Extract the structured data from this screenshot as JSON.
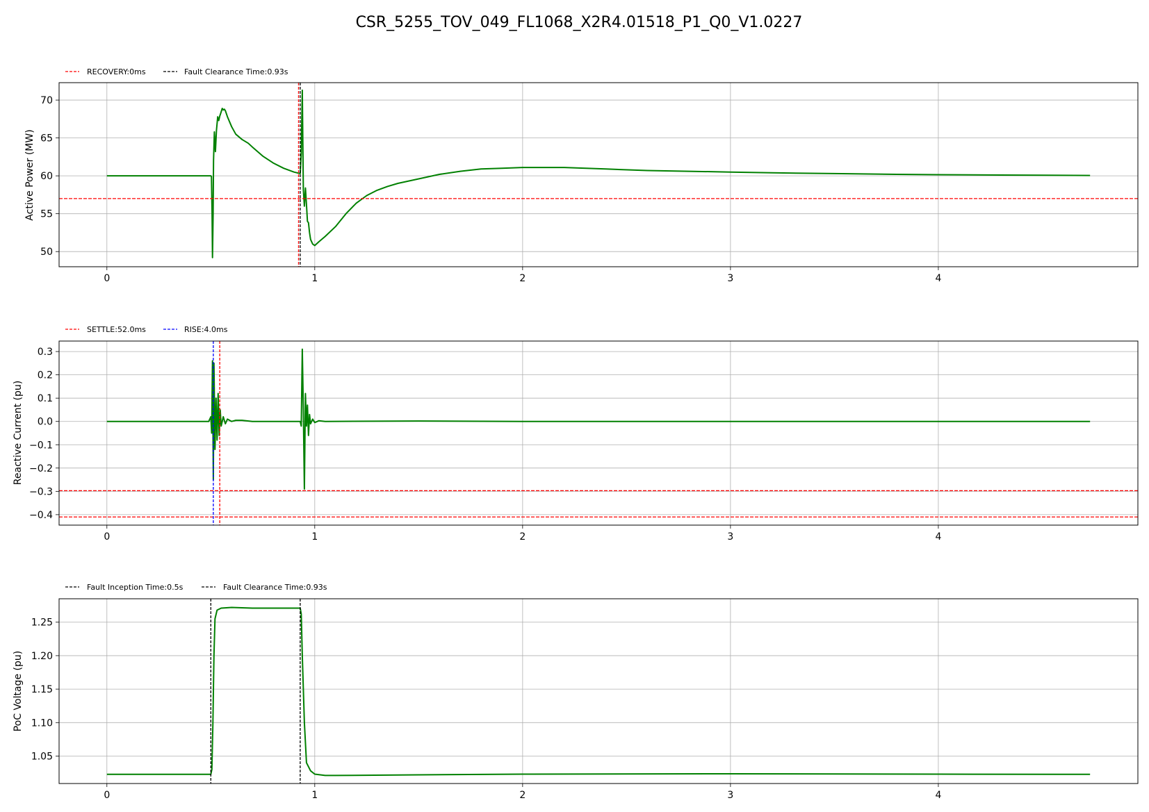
{
  "figure": {
    "title": "CSR_5255_TOV_049_FL1068_X2R4.01518_P1_Q0_V1.0227"
  },
  "colors": {
    "signal": "#008000",
    "red_marker": "#ff0000",
    "blue_marker": "#0000ff",
    "black_marker": "#000000",
    "grid": "#b0b0b0"
  },
  "chart_data": [
    {
      "type": "line",
      "ylabel": "Active Power (MW)",
      "xlim": [
        -0.23,
        4.96
      ],
      "ylim": [
        48.0,
        72.3
      ],
      "xticks": [
        0,
        1,
        2,
        3,
        4
      ],
      "yticks": [
        50,
        55,
        60,
        65,
        70
      ],
      "grid": true,
      "legend_position": "above-left",
      "legend": [
        {
          "label": "RECOVERY:0ms",
          "color": "#ff0000",
          "style": "dashed"
        },
        {
          "label": "Fault Clearance Time:0.93s",
          "color": "#000000",
          "style": "dashed"
        }
      ],
      "hlines": [
        {
          "y": 57.0,
          "color": "#ff0000",
          "style": "dashed"
        }
      ],
      "vlines": [
        {
          "x": 0.922,
          "color": "#ff0000",
          "style": "dashed"
        },
        {
          "x": 0.93,
          "color": "#000000",
          "style": "dashed"
        }
      ],
      "series": [
        {
          "color": "#008000",
          "x": [
            0,
            0.1,
            0.2,
            0.3,
            0.4,
            0.45,
            0.5,
            0.503,
            0.506,
            0.508,
            0.511,
            0.513,
            0.517,
            0.522,
            0.527,
            0.533,
            0.538,
            0.543,
            0.548,
            0.555,
            0.56,
            0.565,
            0.57,
            0.58,
            0.6,
            0.62,
            0.65,
            0.68,
            0.7,
            0.75,
            0.8,
            0.85,
            0.9,
            0.93,
            0.935,
            0.94,
            0.945,
            0.95,
            0.955,
            0.96,
            0.965,
            0.97,
            0.975,
            0.98,
            0.99,
            1.0,
            1.02,
            1.05,
            1.1,
            1.15,
            1.2,
            1.25,
            1.3,
            1.35,
            1.4,
            1.5,
            1.6,
            1.7,
            1.8,
            1.9,
            2.0,
            2.1,
            2.2,
            2.4,
            2.6,
            2.8,
            3.0,
            3.2,
            3.5,
            3.8,
            4.0,
            4.3,
            4.5,
            4.73
          ],
          "y": [
            60.0,
            60.0,
            60.0,
            60.0,
            60.0,
            60.0,
            60.0,
            59.9,
            55.0,
            49.2,
            55.0,
            62.0,
            65.8,
            63.2,
            66.0,
            67.8,
            67.3,
            67.9,
            68.3,
            68.9,
            68.7,
            68.8,
            68.6,
            67.8,
            66.5,
            65.5,
            64.8,
            64.3,
            63.8,
            62.6,
            61.7,
            61.0,
            60.5,
            60.3,
            63.0,
            71.3,
            58.2,
            56.0,
            58.4,
            56.2,
            54.0,
            53.8,
            52.5,
            51.6,
            51.0,
            50.8,
            51.3,
            52.0,
            53.3,
            55.0,
            56.4,
            57.4,
            58.1,
            58.6,
            59.0,
            59.6,
            60.2,
            60.6,
            60.9,
            61.0,
            61.1,
            61.1,
            61.1,
            60.9,
            60.7,
            60.6,
            60.5,
            60.4,
            60.3,
            60.2,
            60.15,
            60.1,
            60.08,
            60.05
          ]
        }
      ]
    },
    {
      "type": "line",
      "ylabel": "Reactive Current (pu)",
      "xlim": [
        -0.23,
        4.96
      ],
      "ylim": [
        -0.445,
        0.345
      ],
      "xticks": [
        0,
        1,
        2,
        3,
        4
      ],
      "yticks": [
        -0.4,
        -0.3,
        -0.2,
        -0.1,
        0.0,
        0.1,
        0.2,
        0.3
      ],
      "grid": true,
      "legend_position": "above-left",
      "legend": [
        {
          "label": "SETTLE:52.0ms",
          "color": "#ff0000",
          "style": "dashed"
        },
        {
          "label": "RISE:4.0ms",
          "color": "#0000ff",
          "style": "dashed"
        }
      ],
      "hlines": [
        {
          "y": -0.297,
          "color": "#ff0000",
          "style": "dashed"
        },
        {
          "y": -0.41,
          "color": "#ff0000",
          "style": "dashed"
        }
      ],
      "vlines": [
        {
          "x": 0.512,
          "color": "#0000ff",
          "style": "dashed"
        },
        {
          "x": 0.543,
          "color": "#ff0000",
          "style": "dashed"
        }
      ],
      "series": [
        {
          "color": "#008000",
          "x": [
            0,
            0.3,
            0.49,
            0.5,
            0.504,
            0.508,
            0.512,
            0.515,
            0.52,
            0.525,
            0.53,
            0.535,
            0.54,
            0.545,
            0.55,
            0.56,
            0.57,
            0.58,
            0.6,
            0.62,
            0.65,
            0.7,
            0.9,
            0.93,
            0.935,
            0.94,
            0.945,
            0.95,
            0.955,
            0.96,
            0.965,
            0.97,
            0.975,
            0.98,
            0.99,
            1.0,
            1.02,
            1.05,
            1.5,
            2.0,
            3.0,
            4.0,
            4.73
          ],
          "y": [
            0.0,
            0.0,
            0.0,
            0.02,
            -0.05,
            0.26,
            -0.25,
            0.25,
            -0.12,
            0.1,
            -0.08,
            0.12,
            -0.06,
            0.05,
            -0.02,
            0.02,
            -0.01,
            0.01,
            0.0,
            0.005,
            0.005,
            0.0,
            0.0,
            0.0,
            -0.02,
            0.31,
            0.05,
            -0.29,
            0.12,
            -0.02,
            0.07,
            -0.06,
            0.03,
            -0.01,
            0.01,
            -0.005,
            0.003,
            0.0,
            0.002,
            0.0,
            0.0,
            0.0,
            0.0
          ]
        }
      ]
    },
    {
      "type": "line",
      "ylabel": "PoC Voltage (pu)",
      "xlim": [
        -0.23,
        4.96
      ],
      "ylim": [
        1.009,
        1.285
      ],
      "xticks": [
        0,
        1,
        2,
        3,
        4
      ],
      "yticks": [
        1.05,
        1.1,
        1.15,
        1.2,
        1.25
      ],
      "grid": true,
      "legend_position": "above-left",
      "legend": [
        {
          "label": "Fault Inception Time:0.5s",
          "color": "#000000",
          "style": "dashed"
        },
        {
          "label": "Fault Clearance Time:0.93s",
          "color": "#000000",
          "style": "dashed"
        }
      ],
      "hlines": [],
      "vlines": [
        {
          "x": 0.5,
          "color": "#000000",
          "style": "dashed"
        },
        {
          "x": 0.93,
          "color": "#000000",
          "style": "dashed"
        }
      ],
      "series": [
        {
          "color": "#008000",
          "x": [
            0,
            0.2,
            0.4,
            0.5,
            0.505,
            0.51,
            0.515,
            0.52,
            0.53,
            0.55,
            0.6,
            0.7,
            0.8,
            0.9,
            0.93,
            0.935,
            0.94,
            0.95,
            0.96,
            0.98,
            1.0,
            1.05,
            1.1,
            1.5,
            2.0,
            3.0,
            4.0,
            4.73
          ],
          "y": [
            1.0227,
            1.0227,
            1.0227,
            1.0227,
            1.03,
            1.1,
            1.2,
            1.255,
            1.268,
            1.271,
            1.272,
            1.271,
            1.271,
            1.271,
            1.271,
            1.262,
            1.2,
            1.1,
            1.04,
            1.028,
            1.023,
            1.021,
            1.021,
            1.022,
            1.023,
            1.0235,
            1.023,
            1.0227
          ]
        }
      ]
    }
  ]
}
